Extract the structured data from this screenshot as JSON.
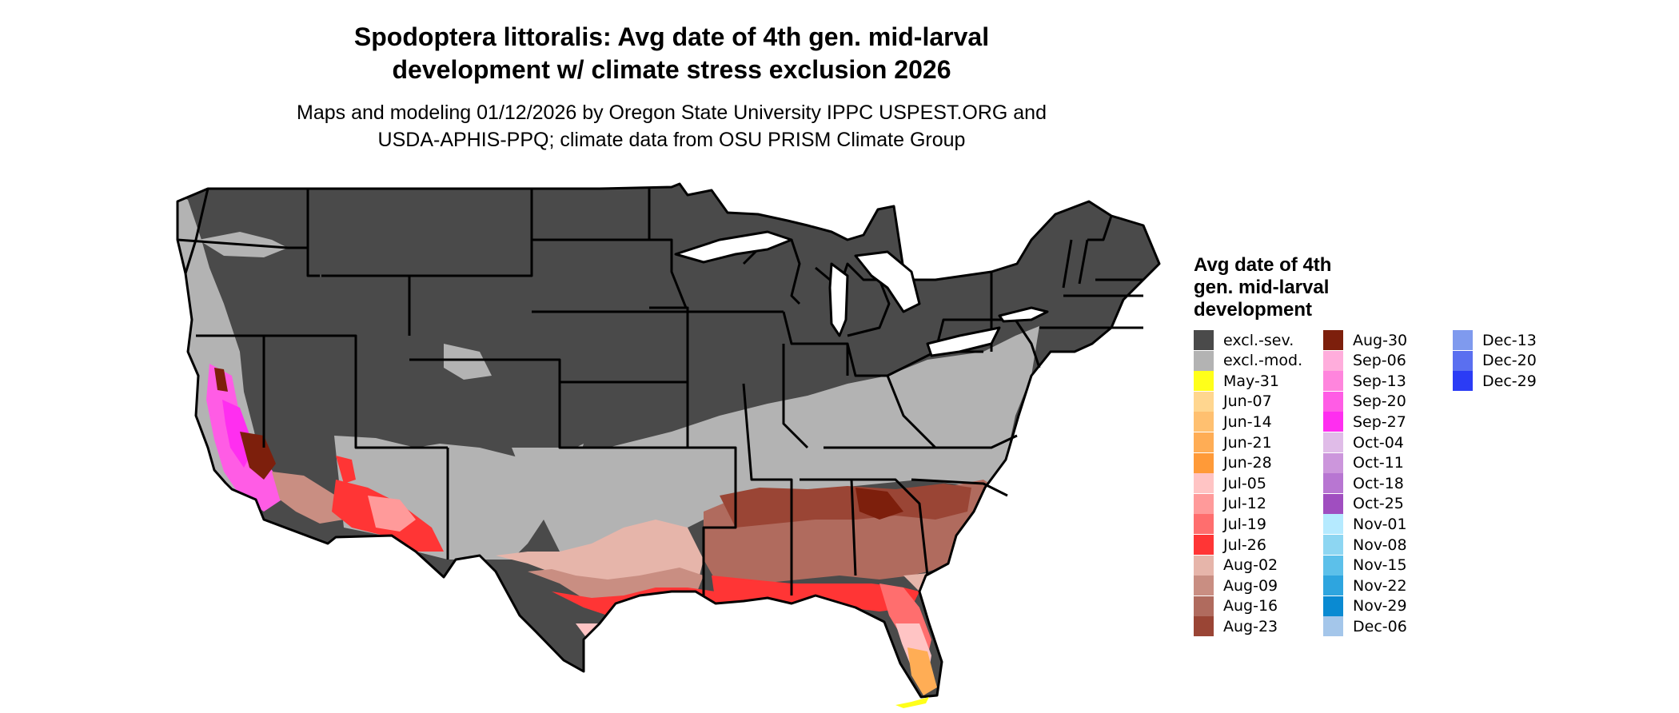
{
  "title_lines": [
    "Spodoptera littoralis: Avg date of 4th gen. mid-larval",
    "development w/ climate stress exclusion 2026"
  ],
  "subtitle_lines": [
    "Maps and modeling 01/12/2026 by Oregon State University IPPC USPEST.ORG and",
    "USDA-APHIS-PPQ; climate data from OSU PRISM Climate Group"
  ],
  "legend": {
    "title_lines": [
      "Avg date of 4th",
      "gen. mid-larval",
      "development"
    ],
    "items": [
      {
        "label": "excl.-sev.",
        "color": "#4a4a4a"
      },
      {
        "label": "excl.-mod.",
        "color": "#b3b3b3"
      },
      {
        "label": "May-31",
        "color": "#ffff1a"
      },
      {
        "label": "Jun-07",
        "color": "#ffd68f"
      },
      {
        "label": "Jun-14",
        "color": "#ffc070"
      },
      {
        "label": "Jun-21",
        "color": "#ffad55"
      },
      {
        "label": "Jun-28",
        "color": "#ff9a38"
      },
      {
        "label": "Jul-05",
        "color": "#ffc4c4"
      },
      {
        "label": "Jul-12",
        "color": "#ff9a9a"
      },
      {
        "label": "Jul-19",
        "color": "#ff6e6e"
      },
      {
        "label": "Jul-26",
        "color": "#ff3535"
      },
      {
        "label": "Aug-02",
        "color": "#e6b5aa"
      },
      {
        "label": "Aug-09",
        "color": "#c98e82"
      },
      {
        "label": "Aug-16",
        "color": "#b06b5e"
      },
      {
        "label": "Aug-23",
        "color": "#9a4535"
      },
      {
        "label": "Aug-30",
        "color": "#7d1f0c"
      },
      {
        "label": "Sep-06",
        "color": "#ffaddc"
      },
      {
        "label": "Sep-13",
        "color": "#ff85dd"
      },
      {
        "label": "Sep-20",
        "color": "#ff5ce5"
      },
      {
        "label": "Sep-27",
        "color": "#ff2ef0"
      },
      {
        "label": "Oct-04",
        "color": "#e0bce8"
      },
      {
        "label": "Oct-11",
        "color": "#cc96dc"
      },
      {
        "label": "Oct-18",
        "color": "#b876d2"
      },
      {
        "label": "Oct-25",
        "color": "#a04ec0"
      },
      {
        "label": "Nov-01",
        "color": "#b5eaff"
      },
      {
        "label": "Nov-08",
        "color": "#8dd6f2"
      },
      {
        "label": "Nov-15",
        "color": "#5cc0ea"
      },
      {
        "label": "Nov-22",
        "color": "#2ea5df"
      },
      {
        "label": "Nov-29",
        "color": "#0a8ad2"
      },
      {
        "label": "Dec-06",
        "color": "#a4c6ea"
      },
      {
        "label": "Dec-13",
        "color": "#7f9aee"
      },
      {
        "label": "Dec-20",
        "color": "#5a6ff0"
      },
      {
        "label": "Dec-29",
        "color": "#2b3cf5"
      }
    ]
  }
}
